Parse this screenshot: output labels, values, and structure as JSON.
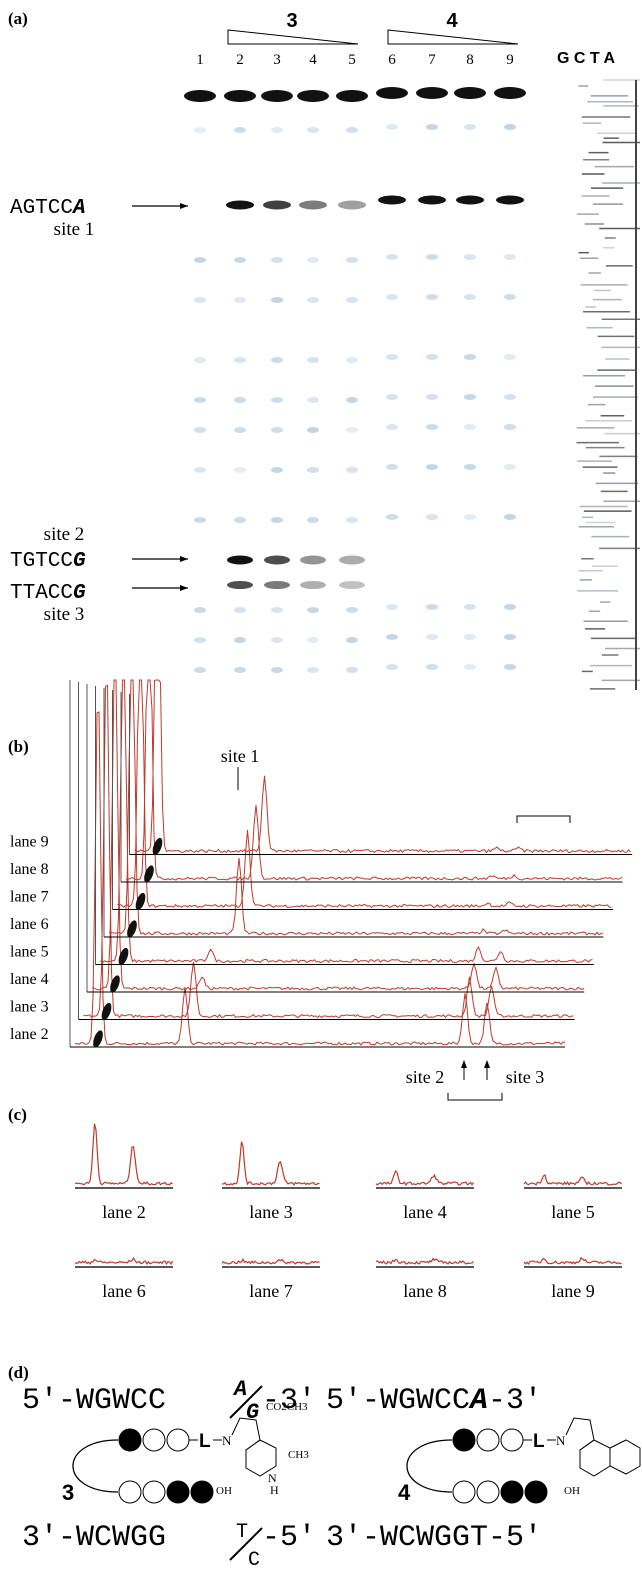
{
  "panel_a": {
    "label": "(a)",
    "compounds": [
      "3",
      "4"
    ],
    "lane_numbers": [
      "1",
      "2",
      "3",
      "4",
      "5",
      "6",
      "7",
      "8",
      "9"
    ],
    "sequencing_lanes": "G C T A",
    "site1": {
      "sequence": "AGTCC",
      "base": "A",
      "label": "site 1"
    },
    "site2": {
      "label": "site 2",
      "sequence": "TGTCC",
      "base": "G"
    },
    "site3": {
      "label": "site 3",
      "sequence": "TTACC",
      "base": "G"
    }
  },
  "panel_b": {
    "label": "(b)",
    "site1": "site 1",
    "lanes": [
      "lane 9",
      "lane 8",
      "lane 7",
      "lane 6",
      "lane 5",
      "lane 4",
      "lane 3",
      "lane 2"
    ],
    "site2": "site 2",
    "site3": "site 3"
  },
  "panel_c": {
    "label": "(c)",
    "lanes": [
      "lane 2",
      "lane 3",
      "lane 4",
      "lane 5",
      "lane 6",
      "lane 7",
      "lane 8",
      "lane 9"
    ]
  },
  "panel_d": {
    "label": "(d)",
    "left": {
      "top_strand": "5'-WGWCC",
      "top_bases": [
        "A",
        "G"
      ],
      "top_end": "-3'",
      "bottom_strand": "3'-WCWGG",
      "bottom_bases": [
        "T",
        "C"
      ],
      "bottom_end": "-5'",
      "compound": "3",
      "linker": "L",
      "ester": "CO2CH3",
      "methyl": "CH3",
      "hydroxyl": "OH",
      "nitrogen": "N",
      "hydrogen": "H"
    },
    "right": {
      "top_strand": "5'-WGWCC",
      "top_base": "A",
      "top_end": "-3'",
      "bottom_strand": "3'-WCWGGT-5'",
      "compound": "4",
      "linker": "L",
      "nitrogen": "N",
      "hydroxyl": "OH"
    }
  }
}
